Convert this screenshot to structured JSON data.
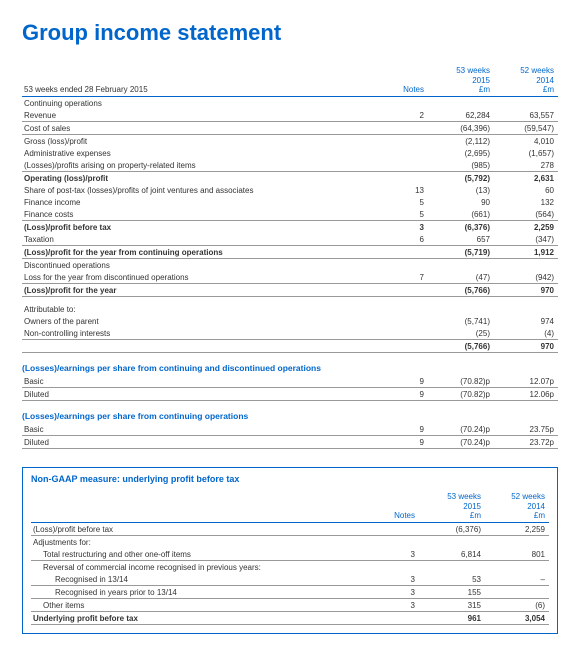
{
  "title": "Group income statement",
  "colors": {
    "brand": "#0066cc",
    "text": "#333333",
    "rule": "#999999",
    "bg": "#ffffff"
  },
  "header": {
    "period_label": "53 weeks ended 28 February 2015",
    "notes_label": "Notes",
    "col1_top": "53 weeks",
    "col1_mid": "2015",
    "col1_unit": "£m",
    "col2_top": "52 weeks",
    "col2_mid": "2014",
    "col2_unit": "£m"
  },
  "rows": [
    {
      "label": "Continuing operations",
      "type": "section"
    },
    {
      "label": "Revenue",
      "notes": "2",
      "v1": "62,284",
      "v2": "63,557",
      "under": true
    },
    {
      "label": "Cost of sales",
      "v1": "(64,396)",
      "v2": "(59,547)",
      "under": true
    },
    {
      "label": "Gross (loss)/profit",
      "v1": "(2,112)",
      "v2": "4,010"
    },
    {
      "label": "Administrative expenses",
      "v1": "(2,695)",
      "v2": "(1,657)"
    },
    {
      "label": "(Losses)/profits arising on property-related items",
      "v1": "(985)",
      "v2": "278",
      "under": true
    },
    {
      "label": "Operating (loss)/profit",
      "v1": "(5,792)",
      "v2": "2,631",
      "bold": true
    },
    {
      "label": "Share of post-tax (losses)/profits of joint ventures and associates",
      "notes": "13",
      "v1": "(13)",
      "v2": "60"
    },
    {
      "label": "Finance income",
      "notes": "5",
      "v1": "90",
      "v2": "132"
    },
    {
      "label": "Finance costs",
      "notes": "5",
      "v1": "(661)",
      "v2": "(564)",
      "under": true
    },
    {
      "label": "(Loss)/profit before tax",
      "notes": "3",
      "v1": "(6,376)",
      "v2": "2,259",
      "bold": true
    },
    {
      "label": "Taxation",
      "notes": "6",
      "v1": "657",
      "v2": "(347)",
      "under": true
    },
    {
      "label": "(Loss)/profit for the year from continuing operations",
      "v1": "(5,719)",
      "v2": "1,912",
      "bold": true,
      "under": true
    },
    {
      "label": "Discontinued operations",
      "type": "section"
    },
    {
      "label": "Loss for the year from discontinued operations",
      "notes": "7",
      "v1": "(47)",
      "v2": "(942)",
      "under": true
    },
    {
      "label": "(Loss)/profit for the year",
      "v1": "(5,766)",
      "v2": "970",
      "bold": true,
      "under": true
    }
  ],
  "attributable": {
    "heading": "Attributable to:",
    "rows": [
      {
        "label": "Owners of the parent",
        "v1": "(5,741)",
        "v2": "974"
      },
      {
        "label": "Non-controlling interests",
        "v1": "(25)",
        "v2": "(4)",
        "under": true
      },
      {
        "label": "",
        "v1": "(5,766)",
        "v2": "970",
        "bold": true,
        "under": true
      }
    ]
  },
  "eps1": {
    "title": "(Losses)/earnings per share from continuing and discontinued operations",
    "rows": [
      {
        "label": "Basic",
        "notes": "9",
        "v1": "(70.82)p",
        "v2": "12.07p",
        "under": true
      },
      {
        "label": "Diluted",
        "notes": "9",
        "v1": "(70.82)p",
        "v2": "12.06p",
        "under": true
      }
    ]
  },
  "eps2": {
    "title": "(Losses)/earnings per share from continuing operations",
    "rows": [
      {
        "label": "Basic",
        "notes": "9",
        "v1": "(70.24)p",
        "v2": "23.75p",
        "under": true
      },
      {
        "label": "Diluted",
        "notes": "9",
        "v1": "(70.24)p",
        "v2": "23.72p",
        "under": true
      }
    ]
  },
  "nongaap": {
    "title": "Non-GAAP measure: underlying profit before tax",
    "header": {
      "notes_label": "Notes",
      "col1_top": "53 weeks",
      "col1_mid": "2015",
      "col1_unit": "£m",
      "col2_top": "52 weeks",
      "col2_mid": "2014",
      "col2_unit": "£m"
    },
    "rows": [
      {
        "label": "(Loss)/profit before tax",
        "v1": "(6,376)",
        "v2": "2,259",
        "under": true
      },
      {
        "label": "Adjustments for:",
        "type": "section"
      },
      {
        "label": "Total restructuring and other one-off items",
        "notes": "3",
        "v1": "6,814",
        "v2": "801",
        "indent": 1,
        "under": true
      },
      {
        "label": "Reversal of commercial income recognised in previous years:",
        "indent": 1
      },
      {
        "label": "Recognised in 13/14",
        "notes": "3",
        "v1": "53",
        "v2": "–",
        "indent": 2,
        "under": true
      },
      {
        "label": "Recognised in years prior to 13/14",
        "notes": "3",
        "v1": "155",
        "v2": "",
        "indent": 2,
        "under": true
      },
      {
        "label": "Other items",
        "notes": "3",
        "v1": "315",
        "v2": "(6)",
        "indent": 1,
        "under": true
      },
      {
        "label": "Underlying profit before tax",
        "v1": "961",
        "v2": "3,054",
        "bold": true,
        "under": true
      }
    ]
  }
}
